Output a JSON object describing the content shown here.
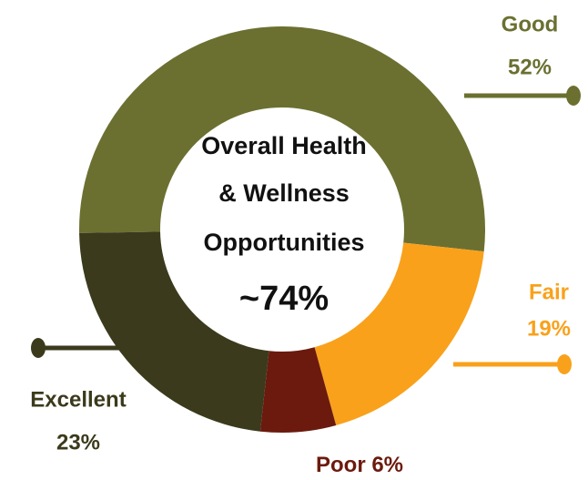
{
  "chart_data": {
    "type": "donut",
    "center_title": [
      "Overall Health",
      "& Wellness",
      "Opportunities"
    ],
    "center_value": "~74%",
    "categories": [
      "Good",
      "Fair",
      "Poor",
      "Excellent"
    ],
    "values": [
      52,
      19,
      6,
      23
    ],
    "value_labels": [
      "52%",
      "19%",
      "6%",
      "23%"
    ],
    "colors": [
      "#6b7031",
      "#f9a11b",
      "#6b1a0d",
      "#3b3a1c"
    ]
  }
}
